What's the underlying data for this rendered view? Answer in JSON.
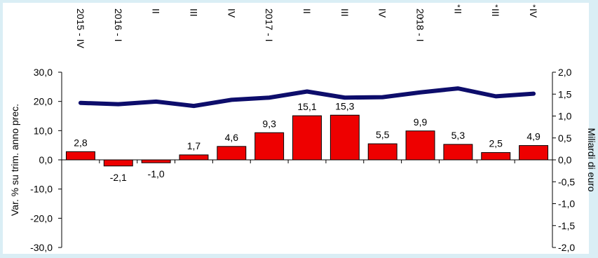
{
  "chart_data": {
    "type": "bar",
    "categories": [
      "2015 - IV",
      "2016 - I",
      "II",
      "III",
      "IV",
      "2017 - I",
      "II",
      "III",
      "IV",
      "2018 - I",
      "II",
      "III",
      "IV"
    ],
    "provisional_marker": "*",
    "provisional_flags": [
      false,
      false,
      false,
      false,
      false,
      false,
      false,
      false,
      false,
      true,
      true,
      true,
      true
    ],
    "series": [
      {
        "kind": "bar",
        "axis": "left",
        "values": [
          2.8,
          -2.1,
          -1.0,
          1.7,
          4.6,
          9.3,
          15.1,
          15.3,
          5.5,
          9.9,
          5.3,
          2.5,
          4.9
        ],
        "data_labels": [
          "2,8",
          "-2,1",
          "-1,0",
          "1,7",
          "4,6",
          "9,3",
          "15,1",
          "15,3",
          "5,5",
          "9,9",
          "5,3",
          "2,5",
          "4,9"
        ],
        "color": "#ee0000"
      },
      {
        "kind": "line",
        "axis": "right",
        "values": [
          1.3,
          1.27,
          1.33,
          1.23,
          1.37,
          1.42,
          1.56,
          1.42,
          1.43,
          1.54,
          1.63,
          1.45,
          1.51
        ],
        "color": "#0d0d6b"
      }
    ],
    "ylabel": "Var. % su trim. anno prec.",
    "y2label": "Miliardi di euro",
    "ylim": [
      -30,
      30
    ],
    "y2lim": [
      -2,
      2
    ],
    "yticks": [
      -30,
      -20,
      -10,
      0,
      10,
      20,
      30
    ],
    "ytick_labels": [
      "-30,0",
      "-20,0",
      "-10,0",
      "0,0",
      "10,0",
      "20,0",
      "30,0"
    ],
    "y2ticks": [
      -2,
      -1.5,
      -1,
      -0.5,
      0,
      0.5,
      1,
      1.5,
      2
    ],
    "y2tick_labels": [
      "-2,0",
      "-1,5",
      "-1,0",
      "-0,5",
      "0,0",
      "0,5",
      "1,0",
      "1,5",
      "2,0"
    ],
    "grid": false,
    "colors": {
      "background": "#daeef5",
      "plot_background": "#ffffff",
      "bar": "#ee0000",
      "line": "#0d0d6b"
    }
  }
}
